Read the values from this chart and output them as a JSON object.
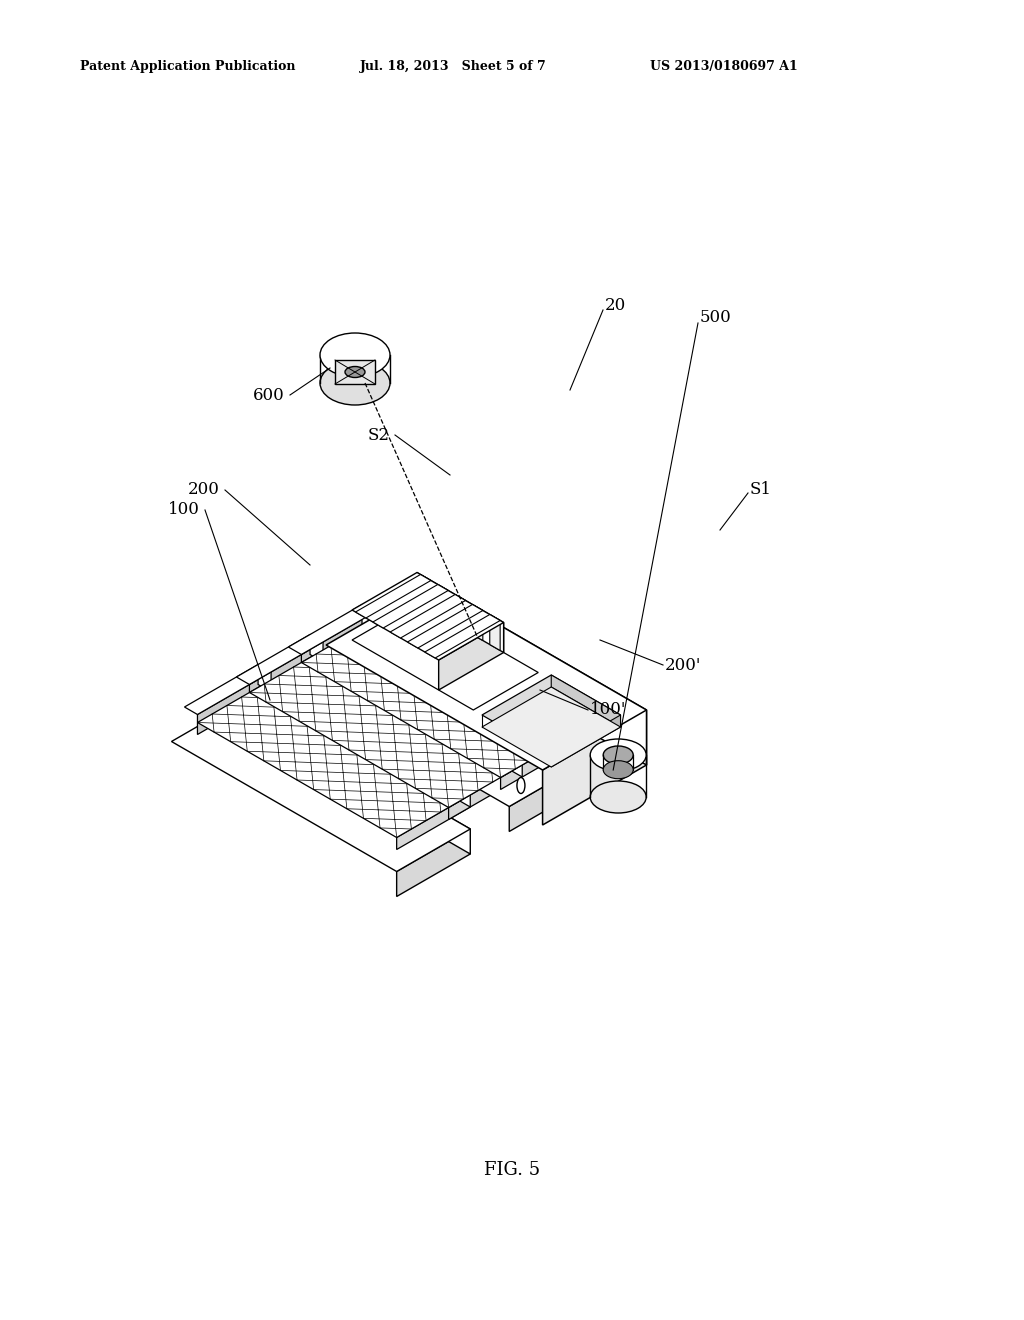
{
  "title": "FIG. 5",
  "header_left": "Patent Application Publication",
  "header_mid": "Jul. 18, 2013   Sheet 5 of 7",
  "header_right": "US 2013/0180697 A1",
  "bg_color": "#ffffff",
  "line_color": "#000000",
  "iso_sx": 0.866,
  "iso_sy": 0.5,
  "scale": 1.0
}
